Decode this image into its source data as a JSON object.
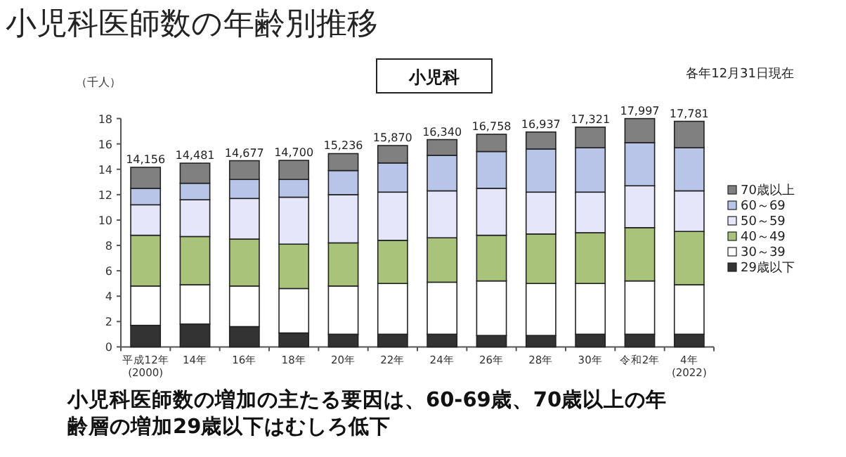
{
  "chart_data": {
    "type": "bar",
    "stacked": true,
    "title": "小児科医師数の年齢別推移",
    "subtitle": "小児科",
    "ylabel": "（千人）",
    "annotations": [
      "各年12月31日現在",
      "小児科医師数の増加の主たる要因は、60-69歳、70歳以上の年齢層の増加29歳以下はむしろ低下"
    ],
    "categories": [
      "平成12年\n(2000)",
      "14年",
      "16年",
      "18年",
      "20年",
      "22年",
      "24年",
      "26年",
      "28年",
      "30年",
      "令和2年",
      "4年\n(2022)"
    ],
    "series": [
      {
        "name": "29歳以下",
        "color": "#333333",
        "values": [
          1.7,
          1.8,
          1.6,
          1.1,
          1.0,
          1.0,
          1.0,
          0.9,
          0.9,
          1.0,
          1.0,
          1.0
        ]
      },
      {
        "name": "30～39",
        "color": "#ffffff",
        "values": [
          3.1,
          3.1,
          3.2,
          3.5,
          3.8,
          4.0,
          4.1,
          4.3,
          4.1,
          4.0,
          4.2,
          3.9
        ]
      },
      {
        "name": "40～49",
        "color": "#a9c47a",
        "values": [
          4.0,
          3.8,
          3.7,
          3.5,
          3.4,
          3.4,
          3.5,
          3.6,
          3.9,
          4.0,
          4.2,
          4.2
        ]
      },
      {
        "name": "50～59",
        "color": "#e6e6fa",
        "values": [
          2.4,
          2.9,
          3.2,
          3.7,
          3.8,
          3.8,
          3.7,
          3.7,
          3.3,
          3.2,
          3.3,
          3.2
        ]
      },
      {
        "name": "60～69",
        "color": "#b8c4e8",
        "values": [
          1.3,
          1.3,
          1.5,
          1.4,
          1.9,
          2.3,
          2.8,
          2.9,
          3.4,
          3.5,
          3.4,
          3.4
        ]
      },
      {
        "name": "70歳以上",
        "color": "#808080",
        "values": [
          1.656,
          1.581,
          1.477,
          1.5,
          1.336,
          1.37,
          1.24,
          1.358,
          1.337,
          1.621,
          1.897,
          2.081
        ]
      }
    ],
    "totals": [
      "14,156",
      "14,481",
      "14,677",
      "14,700",
      "15,236",
      "15,870",
      "16,340",
      "16,758",
      "16,937",
      "17,321",
      "17,997",
      "17,781"
    ],
    "ylim": [
      0,
      18
    ],
    "yticks": [
      0,
      2,
      4,
      6,
      8,
      10,
      12,
      14,
      16,
      18
    ],
    "legend": "right",
    "grid": false
  }
}
